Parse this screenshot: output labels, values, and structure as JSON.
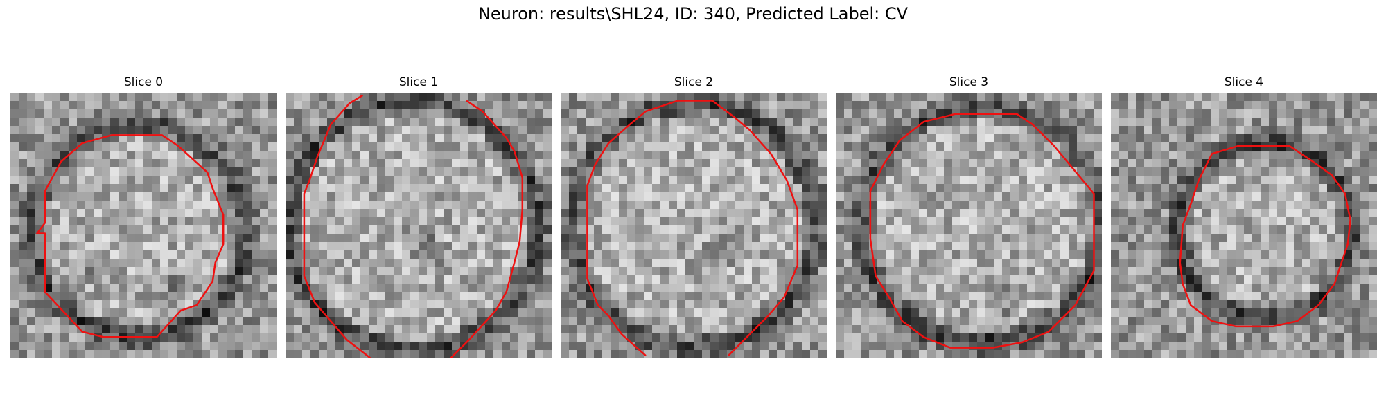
{
  "figure": {
    "title": "Neuron: results\\SHL24, ID: 340, Predicted Label: CV"
  },
  "colors": {
    "outline": "#ee1111",
    "background": "#ffffff"
  },
  "slices": [
    {
      "title": "Slice 0",
      "shape": "closed",
      "contour": [
        [
          0.27,
          0.19
        ],
        [
          0.38,
          0.16
        ],
        [
          0.57,
          0.16
        ],
        [
          0.63,
          0.2
        ],
        [
          0.74,
          0.3
        ],
        [
          0.76,
          0.36
        ],
        [
          0.8,
          0.46
        ],
        [
          0.8,
          0.57
        ],
        [
          0.77,
          0.64
        ],
        [
          0.76,
          0.71
        ],
        [
          0.7,
          0.8
        ],
        [
          0.64,
          0.82
        ],
        [
          0.55,
          0.92
        ],
        [
          0.35,
          0.92
        ],
        [
          0.27,
          0.9
        ],
        [
          0.13,
          0.75
        ],
        [
          0.13,
          0.53
        ],
        [
          0.1,
          0.53
        ],
        [
          0.13,
          0.49
        ],
        [
          0.13,
          0.37
        ],
        [
          0.19,
          0.26
        ]
      ]
    },
    {
      "title": "Slice 1",
      "shape": "open",
      "contour": [
        [
          0.29,
          0.01
        ],
        [
          0.24,
          0.04
        ],
        [
          0.17,
          0.12
        ],
        [
          0.12,
          0.24
        ],
        [
          0.09,
          0.33
        ],
        [
          0.07,
          0.38
        ],
        [
          0.07,
          0.69
        ],
        [
          0.11,
          0.79
        ],
        [
          0.17,
          0.86
        ],
        [
          0.23,
          0.93
        ],
        [
          0.32,
          1.0
        ]
      ],
      "contour2": [
        [
          0.62,
          1.0
        ],
        [
          0.69,
          0.93
        ],
        [
          0.79,
          0.82
        ],
        [
          0.83,
          0.75
        ],
        [
          0.86,
          0.64
        ],
        [
          0.88,
          0.56
        ],
        [
          0.89,
          0.44
        ],
        [
          0.89,
          0.32
        ],
        [
          0.86,
          0.22
        ],
        [
          0.83,
          0.17
        ],
        [
          0.74,
          0.07
        ],
        [
          0.68,
          0.03
        ]
      ]
    },
    {
      "title": "Slice 2",
      "shape": "open",
      "contour": [
        [
          0.32,
          0.99
        ],
        [
          0.23,
          0.91
        ],
        [
          0.18,
          0.84
        ],
        [
          0.14,
          0.8
        ],
        [
          0.1,
          0.7
        ],
        [
          0.1,
          0.35
        ],
        [
          0.13,
          0.27
        ],
        [
          0.18,
          0.19
        ],
        [
          0.26,
          0.12
        ],
        [
          0.32,
          0.07
        ],
        [
          0.44,
          0.03
        ],
        [
          0.57,
          0.03
        ],
        [
          0.65,
          0.09
        ],
        [
          0.71,
          0.14
        ],
        [
          0.79,
          0.23
        ],
        [
          0.85,
          0.33
        ],
        [
          0.89,
          0.44
        ],
        [
          0.89,
          0.65
        ],
        [
          0.84,
          0.77
        ],
        [
          0.78,
          0.84
        ],
        [
          0.7,
          0.92
        ],
        [
          0.63,
          0.99
        ]
      ]
    },
    {
      "title": "Slice 3",
      "shape": "closed",
      "contour": [
        [
          0.33,
          0.11
        ],
        [
          0.45,
          0.08
        ],
        [
          0.68,
          0.08
        ],
        [
          0.74,
          0.12
        ],
        [
          0.82,
          0.2
        ],
        [
          0.92,
          0.32
        ],
        [
          0.97,
          0.38
        ],
        [
          0.97,
          0.67
        ],
        [
          0.9,
          0.8
        ],
        [
          0.8,
          0.9
        ],
        [
          0.7,
          0.94
        ],
        [
          0.59,
          0.96
        ],
        [
          0.43,
          0.96
        ],
        [
          0.33,
          0.92
        ],
        [
          0.25,
          0.86
        ],
        [
          0.2,
          0.77
        ],
        [
          0.15,
          0.69
        ],
        [
          0.13,
          0.55
        ],
        [
          0.13,
          0.37
        ],
        [
          0.18,
          0.27
        ],
        [
          0.24,
          0.18
        ]
      ]
    },
    {
      "title": "Slice 4",
      "shape": "closed",
      "contour": [
        [
          0.38,
          0.23
        ],
        [
          0.48,
          0.2
        ],
        [
          0.67,
          0.2
        ],
        [
          0.76,
          0.26
        ],
        [
          0.83,
          0.31
        ],
        [
          0.88,
          0.38
        ],
        [
          0.9,
          0.48
        ],
        [
          0.89,
          0.57
        ],
        [
          0.86,
          0.66
        ],
        [
          0.84,
          0.72
        ],
        [
          0.78,
          0.8
        ],
        [
          0.7,
          0.86
        ],
        [
          0.61,
          0.88
        ],
        [
          0.47,
          0.88
        ],
        [
          0.38,
          0.86
        ],
        [
          0.3,
          0.8
        ],
        [
          0.27,
          0.72
        ],
        [
          0.26,
          0.64
        ],
        [
          0.27,
          0.5
        ],
        [
          0.3,
          0.42
        ],
        [
          0.33,
          0.33
        ]
      ]
    }
  ]
}
